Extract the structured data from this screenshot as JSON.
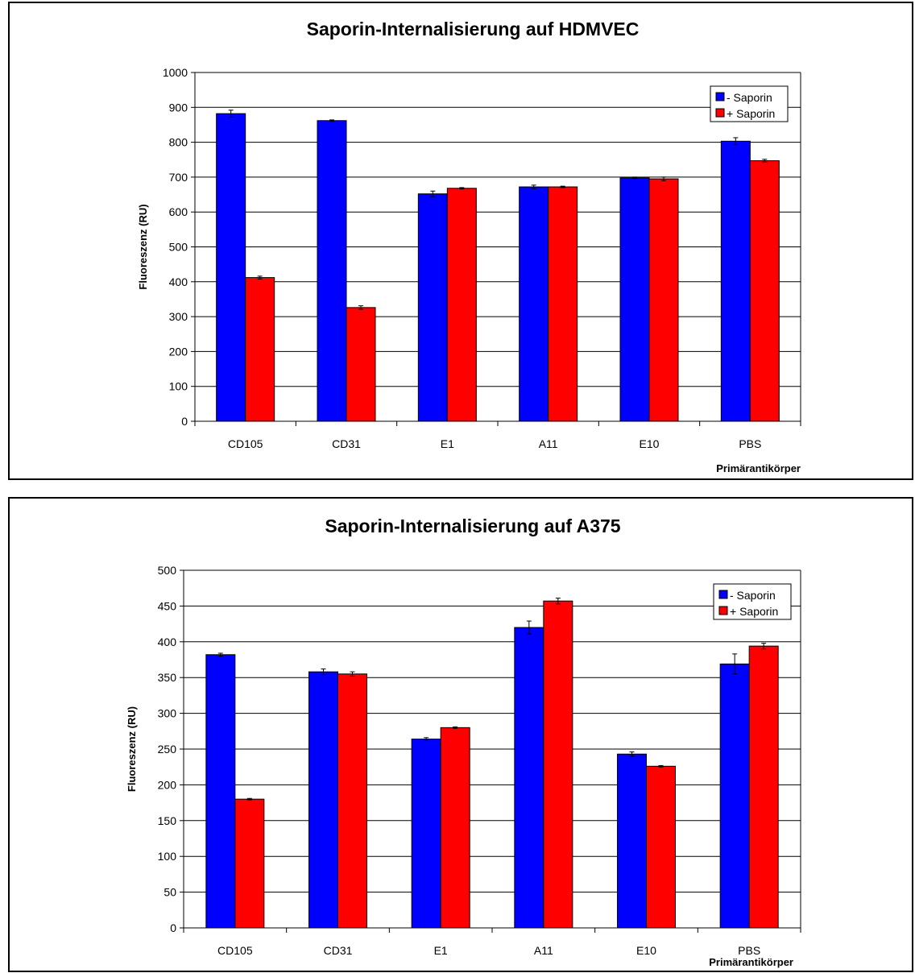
{
  "chart_data": [
    {
      "type": "bar",
      "title": "Saporin-Internalisierung auf HDMVEC",
      "xlabel": "Primärantikörper",
      "ylabel": "Fluoreszenz (RU)",
      "ylim": [
        0,
        1000
      ],
      "yticks": [
        "0",
        "100",
        "200",
        "300",
        "400",
        "500",
        "600",
        "700",
        "800",
        "900",
        "1000"
      ],
      "categories": [
        "CD105",
        "CD31",
        "E1",
        "A11",
        "E10",
        "PBS"
      ],
      "series": [
        {
          "name": "- Saporin",
          "color": "#0000ff",
          "values": [
            882,
            862,
            652,
            672,
            698,
            803
          ],
          "errors": [
            10,
            2,
            8,
            5,
            2,
            10
          ]
        },
        {
          "name": "+ Saporin",
          "color": "#ff0000",
          "values": [
            412,
            326,
            668,
            672,
            695,
            747
          ],
          "errors": [
            4,
            5,
            2,
            2,
            5,
            4
          ]
        }
      ],
      "legend_position": "top-right",
      "grid": "horizontal"
    },
    {
      "type": "bar",
      "title": "Saporin-Internalisierung auf A375",
      "xlabel": "Primärantikörper",
      "ylabel": "Fluoreszenz (RU)",
      "ylim": [
        0,
        500
      ],
      "yticks": [
        "0",
        "50",
        "100",
        "150",
        "200",
        "250",
        "300",
        "350",
        "400",
        "450",
        "500"
      ],
      "categories": [
        "CD105",
        "CD31",
        "E1",
        "A11",
        "E10",
        "PBS"
      ],
      "series": [
        {
          "name": "- Saporin",
          "color": "#0000ff",
          "values": [
            382,
            358,
            264,
            420,
            243,
            369
          ],
          "errors": [
            2,
            4,
            2,
            9,
            3,
            14
          ]
        },
        {
          "name": "+ Saporin",
          "color": "#ff0000",
          "values": [
            180,
            355,
            280,
            457,
            226,
            394
          ],
          "errors": [
            1,
            3,
            1,
            4,
            1,
            4
          ]
        }
      ],
      "legend_position": "top-right",
      "grid": "horizontal"
    }
  ]
}
